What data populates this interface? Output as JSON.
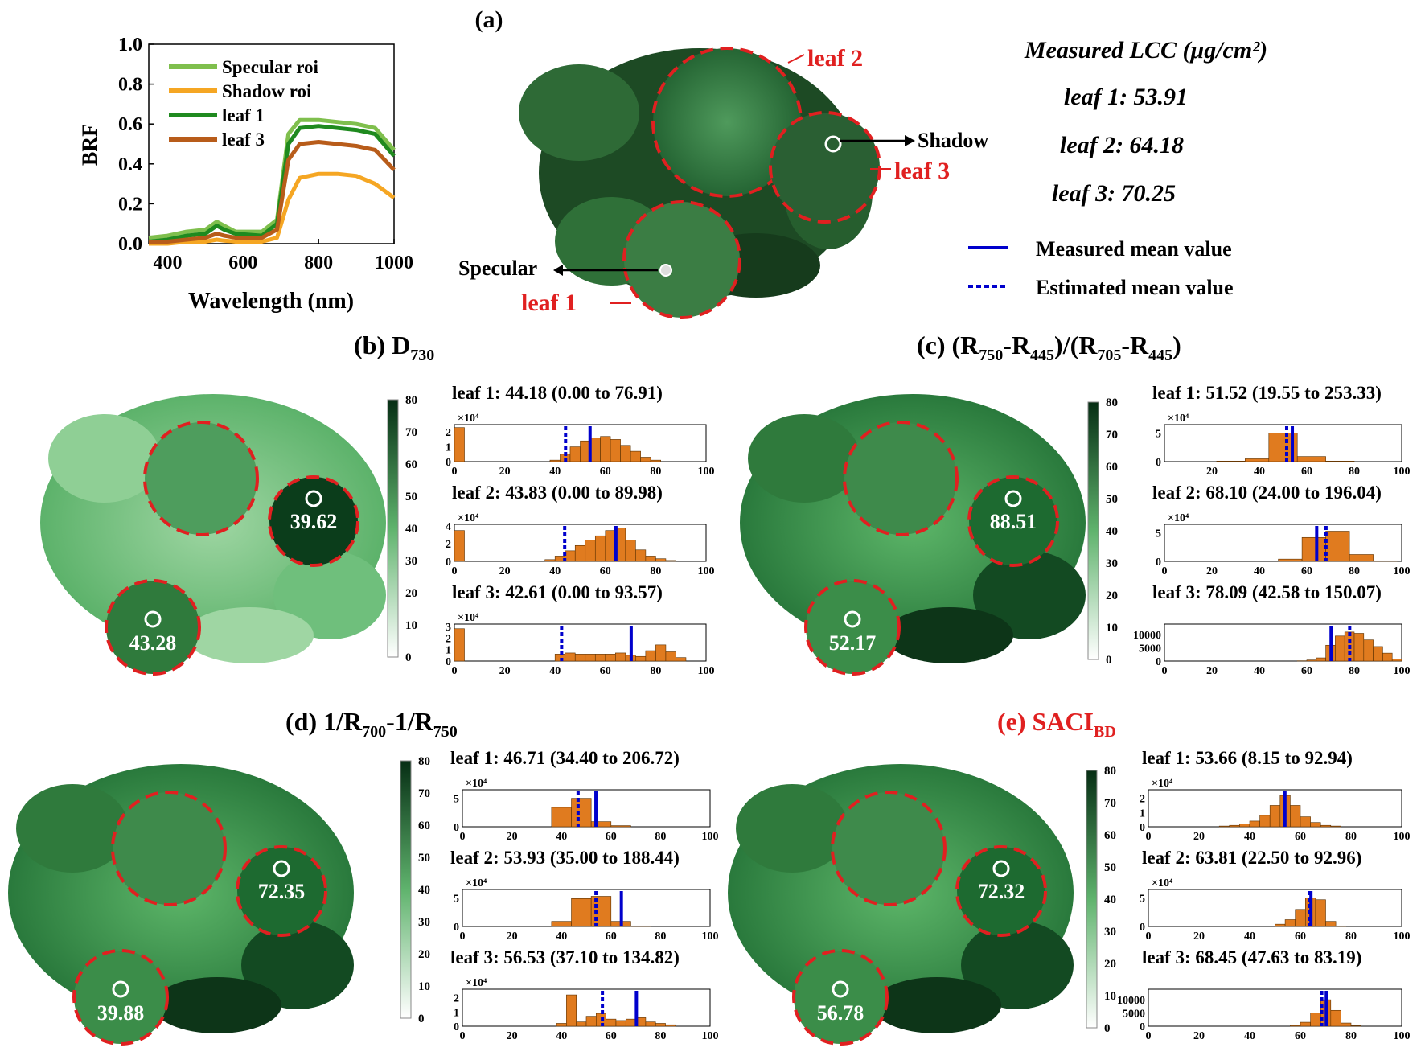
{
  "colors": {
    "specular": "#7fbf4d",
    "shadow": "#f5a623",
    "leaf1": "#1f8a1f",
    "leaf3": "#b85c1a",
    "bar": "#e07b1f",
    "measured": "#0000cc",
    "roi": "#e02020",
    "dark_green": "#0b3d1b"
  },
  "panel_a": {
    "label": "(a)",
    "leaf_labels": [
      "leaf 1",
      "leaf 2",
      "leaf 3"
    ],
    "specular_label": "Specular",
    "shadow_label": "Shadow",
    "lcc_title": "Measured LCC (μg/cm²)",
    "lcc": [
      "leaf 1:  53.91",
      "leaf 2:  64.18",
      "leaf 3:  70.25"
    ],
    "legend_measured": "Measured mean value",
    "legend_estimated": "Estimated mean value"
  },
  "colorbar_ticks": [
    "0",
    "10",
    "20",
    "30",
    "40",
    "50",
    "60",
    "70",
    "80"
  ],
  "panels": [
    {
      "label": "(b) D",
      "sub": "730",
      "sub2": "",
      "rest": "",
      "title_color": "#000000",
      "roi_values": [
        "43.28",
        "39.62"
      ],
      "stats": [
        "leaf 1: 44.18  (0.00 to 76.91)",
        "leaf 2: 43.83  (0.00 to 89.98)",
        "leaf 3: 42.61  (0.00 to 93.57)"
      ],
      "y_exp": [
        "×10⁴",
        "×10⁴",
        "×10⁴"
      ]
    },
    {
      "label": "(c) (R",
      "sub": "750",
      "rest": "-R",
      "sub2": "445",
      "title_color": "#000000",
      "roi_values": [
        "52.17",
        "88.51"
      ],
      "stats": [
        "leaf 1: 51.52  (19.55 to 253.33)",
        "leaf 2: 68.10  (24.00 to 196.04)",
        "leaf 3: 78.09  (42.58 to 150.07)"
      ],
      "y_exp": [
        "×10⁴",
        "×10⁴",
        ""
      ]
    },
    {
      "label": "(d) 1/R",
      "sub": "700",
      "rest": "-1/R",
      "sub2": "750",
      "title_color": "#000000",
      "roi_values": [
        "39.88",
        "72.35"
      ],
      "stats": [
        "leaf 1: 46.71  (34.40 to 206.72)",
        "leaf 2: 53.93  (35.00 to 188.44)",
        "leaf 3: 56.53  (37.10 to 134.82)"
      ],
      "y_exp": [
        "×10⁴",
        "×10⁴",
        "×10⁴"
      ]
    },
    {
      "label": "(e) SACI",
      "sub": "BD",
      "rest": "",
      "sub2": "",
      "title_color": "#e02020",
      "roi_values": [
        "56.78",
        "72.32"
      ],
      "stats": [
        "leaf 1: 53.66  (8.15 to 92.94)",
        "leaf 2: 63.81  (22.50 to 92.96)",
        "leaf 3: 68.45  (47.63 to 83.19)"
      ],
      "y_exp": [
        "×10⁴",
        "×10⁴",
        ""
      ]
    }
  ],
  "chart_data": [
    {
      "type": "line",
      "title": "",
      "xlabel": "Wavelength (nm)",
      "ylabel": "BRF",
      "xlim": [
        350,
        1000
      ],
      "ylim": [
        0,
        1.0
      ],
      "xticks": [
        "400",
        "600",
        "800",
        "1000"
      ],
      "yticks": [
        "0.0",
        "0.2",
        "0.4",
        "0.6",
        "0.8",
        "1.0"
      ],
      "x": [
        350,
        400,
        450,
        500,
        530,
        550,
        580,
        650,
        690,
        720,
        750,
        800,
        850,
        900,
        950,
        1000
      ],
      "series": [
        {
          "name": "Specular roi",
          "values": [
            0.03,
            0.04,
            0.06,
            0.07,
            0.11,
            0.09,
            0.06,
            0.06,
            0.12,
            0.55,
            0.62,
            0.62,
            0.61,
            0.6,
            0.58,
            0.47
          ]
        },
        {
          "name": "Shadow roi",
          "values": [
            0.0,
            0.0,
            0.01,
            0.01,
            0.02,
            0.015,
            0.01,
            0.01,
            0.03,
            0.22,
            0.33,
            0.35,
            0.35,
            0.34,
            0.3,
            0.23
          ]
        },
        {
          "name": "leaf 1",
          "values": [
            0.01,
            0.02,
            0.04,
            0.05,
            0.09,
            0.07,
            0.05,
            0.04,
            0.1,
            0.5,
            0.58,
            0.59,
            0.58,
            0.57,
            0.55,
            0.44
          ]
        },
        {
          "name": "leaf 3",
          "values": [
            0.01,
            0.01,
            0.02,
            0.03,
            0.05,
            0.04,
            0.03,
            0.03,
            0.07,
            0.42,
            0.5,
            0.51,
            0.5,
            0.49,
            0.47,
            0.37
          ]
        }
      ]
    },
    {
      "type": "bar",
      "name": "b-leaf1",
      "xlim": [
        0,
        100
      ],
      "ymax": 2.5,
      "yticks": [
        "0",
        "1",
        "2"
      ],
      "xticks": [
        "0",
        "20",
        "40",
        "60",
        "80",
        "100"
      ],
      "bins": [
        [
          0,
          2.3
        ],
        [
          38,
          0.1
        ],
        [
          42,
          0.5
        ],
        [
          46,
          1.0
        ],
        [
          50,
          1.4
        ],
        [
          54,
          1.6
        ],
        [
          58,
          1.7
        ],
        [
          62,
          1.5
        ],
        [
          66,
          1.1
        ],
        [
          70,
          0.7
        ],
        [
          74,
          0.3
        ],
        [
          78,
          0.1
        ]
      ],
      "width": 4,
      "measured": 53.91,
      "estimated": 44.18
    },
    {
      "type": "bar",
      "name": "b-leaf2",
      "xlim": [
        0,
        100
      ],
      "ymax": 4.2,
      "yticks": [
        "0",
        "2",
        "4"
      ],
      "xticks": [
        "0",
        "20",
        "40",
        "60",
        "80",
        "100"
      ],
      "bins": [
        [
          0,
          3.5
        ],
        [
          36,
          0.2
        ],
        [
          40,
          0.6
        ],
        [
          44,
          1.2
        ],
        [
          48,
          1.8
        ],
        [
          52,
          2.4
        ],
        [
          56,
          2.9
        ],
        [
          60,
          3.5
        ],
        [
          64,
          3.8
        ],
        [
          68,
          2.4
        ],
        [
          72,
          1.3
        ],
        [
          76,
          0.6
        ],
        [
          80,
          0.3
        ],
        [
          84,
          0.1
        ]
      ],
      "width": 4,
      "measured": 64.18,
      "estimated": 43.83
    },
    {
      "type": "bar",
      "name": "b-leaf3",
      "xlim": [
        0,
        100
      ],
      "ymax": 3.2,
      "yticks": [
        "0",
        "1",
        "2",
        "3"
      ],
      "xticks": [
        "0",
        "20",
        "40",
        "60",
        "80",
        "100"
      ],
      "bins": [
        [
          0,
          2.8
        ],
        [
          40,
          0.6
        ],
        [
          44,
          0.7
        ],
        [
          48,
          0.6
        ],
        [
          52,
          0.6
        ],
        [
          56,
          0.6
        ],
        [
          60,
          0.6
        ],
        [
          64,
          0.7
        ],
        [
          68,
          0.5
        ],
        [
          72,
          0.4
        ],
        [
          76,
          0.9
        ],
        [
          80,
          1.4
        ],
        [
          84,
          0.8
        ],
        [
          88,
          0.3
        ]
      ],
      "width": 4,
      "measured": 70.25,
      "estimated": 42.61
    },
    {
      "type": "bar",
      "name": "c-leaf1",
      "xlim": [
        0,
        100
      ],
      "ymax": 6.5,
      "yticks": [
        "0",
        "5"
      ],
      "xticks": [
        "20",
        "40",
        "60",
        "80",
        "100"
      ],
      "bins": [
        [
          22,
          0.1
        ],
        [
          34,
          0.5
        ],
        [
          44,
          5.0
        ],
        [
          56,
          0.9
        ],
        [
          68,
          0.1
        ]
      ],
      "width": 12,
      "measured": 53.91,
      "estimated": 51.52
    },
    {
      "type": "bar",
      "name": "c-leaf2",
      "xlim": [
        0,
        100
      ],
      "ymax": 6.5,
      "yticks": [
        "0",
        "5"
      ],
      "xticks": [
        "0",
        "20",
        "40",
        "60",
        "80",
        "100"
      ],
      "bins": [
        [
          48,
          0.4
        ],
        [
          58,
          4.2
        ],
        [
          68,
          5.3
        ],
        [
          78,
          1.2
        ],
        [
          88,
          0.1
        ]
      ],
      "width": 10,
      "measured": 64.18,
      "estimated": 68.1
    },
    {
      "type": "bar",
      "name": "c-leaf3",
      "xlim": [
        0,
        100
      ],
      "ymax": 14000,
      "yticks": [
        "0",
        "5000",
        "10000"
      ],
      "xticks": [
        "0",
        "20",
        "40",
        "60",
        "80",
        "100"
      ],
      "bins": [
        [
          56,
          100
        ],
        [
          60,
          400
        ],
        [
          64,
          1200
        ],
        [
          68,
          6000
        ],
        [
          72,
          9500
        ],
        [
          76,
          11000
        ],
        [
          80,
          10500
        ],
        [
          84,
          8000
        ],
        [
          88,
          5500
        ],
        [
          92,
          3000
        ],
        [
          96,
          800
        ]
      ],
      "width": 4,
      "measured": 70.25,
      "estimated": 78.09
    },
    {
      "type": "bar",
      "name": "d-leaf1",
      "xlim": [
        0,
        100
      ],
      "ymax": 6.5,
      "yticks": [
        "0",
        "5"
      ],
      "xticks": [
        "0",
        "20",
        "40",
        "60",
        "80",
        "100"
      ],
      "bins": [
        [
          36,
          3.4
        ],
        [
          44,
          5.0
        ],
        [
          52,
          0.9
        ],
        [
          60,
          0.2
        ]
      ],
      "width": 8,
      "measured": 53.91,
      "estimated": 46.71
    },
    {
      "type": "bar",
      "name": "d-leaf2",
      "xlim": [
        0,
        100
      ],
      "ymax": 6.5,
      "yticks": [
        "0",
        "5"
      ],
      "xticks": [
        "0",
        "20",
        "40",
        "60",
        "80",
        "100"
      ],
      "bins": [
        [
          36,
          0.9
        ],
        [
          44,
          4.9
        ],
        [
          52,
          5.3
        ],
        [
          60,
          0.9
        ],
        [
          68,
          0.1
        ]
      ],
      "width": 8,
      "measured": 64.18,
      "estimated": 53.93
    },
    {
      "type": "bar",
      "name": "d-leaf3",
      "xlim": [
        0,
        100
      ],
      "ymax": 2.6,
      "yticks": [
        "0",
        "1",
        "2"
      ],
      "xticks": [
        "0",
        "20",
        "40",
        "60",
        "80",
        "100"
      ],
      "bins": [
        [
          38,
          0.2
        ],
        [
          42,
          2.2
        ],
        [
          46,
          0.3
        ],
        [
          50,
          0.7
        ],
        [
          54,
          0.9
        ],
        [
          58,
          0.5
        ],
        [
          62,
          0.4
        ],
        [
          66,
          0.5
        ],
        [
          70,
          0.6
        ],
        [
          74,
          0.3
        ],
        [
          78,
          0.2
        ],
        [
          82,
          0.1
        ]
      ],
      "width": 4,
      "measured": 70.25,
      "estimated": 56.53
    },
    {
      "type": "bar",
      "name": "e-leaf1",
      "xlim": [
        0,
        100
      ],
      "ymax": 2.6,
      "yticks": [
        "0",
        "1",
        "2"
      ],
      "xticks": [
        "0",
        "20",
        "40",
        "60",
        "80",
        "100"
      ],
      "bins": [
        [
          28,
          0.05
        ],
        [
          32,
          0.1
        ],
        [
          36,
          0.2
        ],
        [
          40,
          0.4
        ],
        [
          44,
          0.8
        ],
        [
          48,
          1.5
        ],
        [
          52,
          2.2
        ],
        [
          56,
          1.5
        ],
        [
          60,
          0.7
        ],
        [
          64,
          0.3
        ],
        [
          68,
          0.1
        ],
        [
          72,
          0.05
        ]
      ],
      "width": 4,
      "measured": 53.91,
      "estimated": 53.66
    },
    {
      "type": "bar",
      "name": "e-leaf2",
      "xlim": [
        0,
        100
      ],
      "ymax": 6.5,
      "yticks": [
        "0",
        "5"
      ],
      "xticks": [
        "0",
        "20",
        "40",
        "60",
        "80",
        "100"
      ],
      "bins": [
        [
          50,
          0.4
        ],
        [
          54,
          1.2
        ],
        [
          58,
          3.0
        ],
        [
          62,
          5.0
        ],
        [
          66,
          4.7
        ],
        [
          70,
          0.9
        ],
        [
          74,
          0.1
        ]
      ],
      "width": 4,
      "measured": 64.18,
      "estimated": 63.81
    },
    {
      "type": "bar",
      "name": "e-leaf3",
      "xlim": [
        0,
        100
      ],
      "ymax": 14000,
      "yticks": [
        "0",
        "5000",
        "10000"
      ],
      "xticks": [
        "0",
        "20",
        "40",
        "60",
        "80",
        "100"
      ],
      "bins": [
        [
          56,
          300
        ],
        [
          60,
          1500
        ],
        [
          64,
          5000
        ],
        [
          68,
          10000
        ],
        [
          72,
          6000
        ],
        [
          76,
          1200
        ],
        [
          80,
          200
        ]
      ],
      "width": 4,
      "measured": 70.25,
      "estimated": 68.45
    }
  ]
}
